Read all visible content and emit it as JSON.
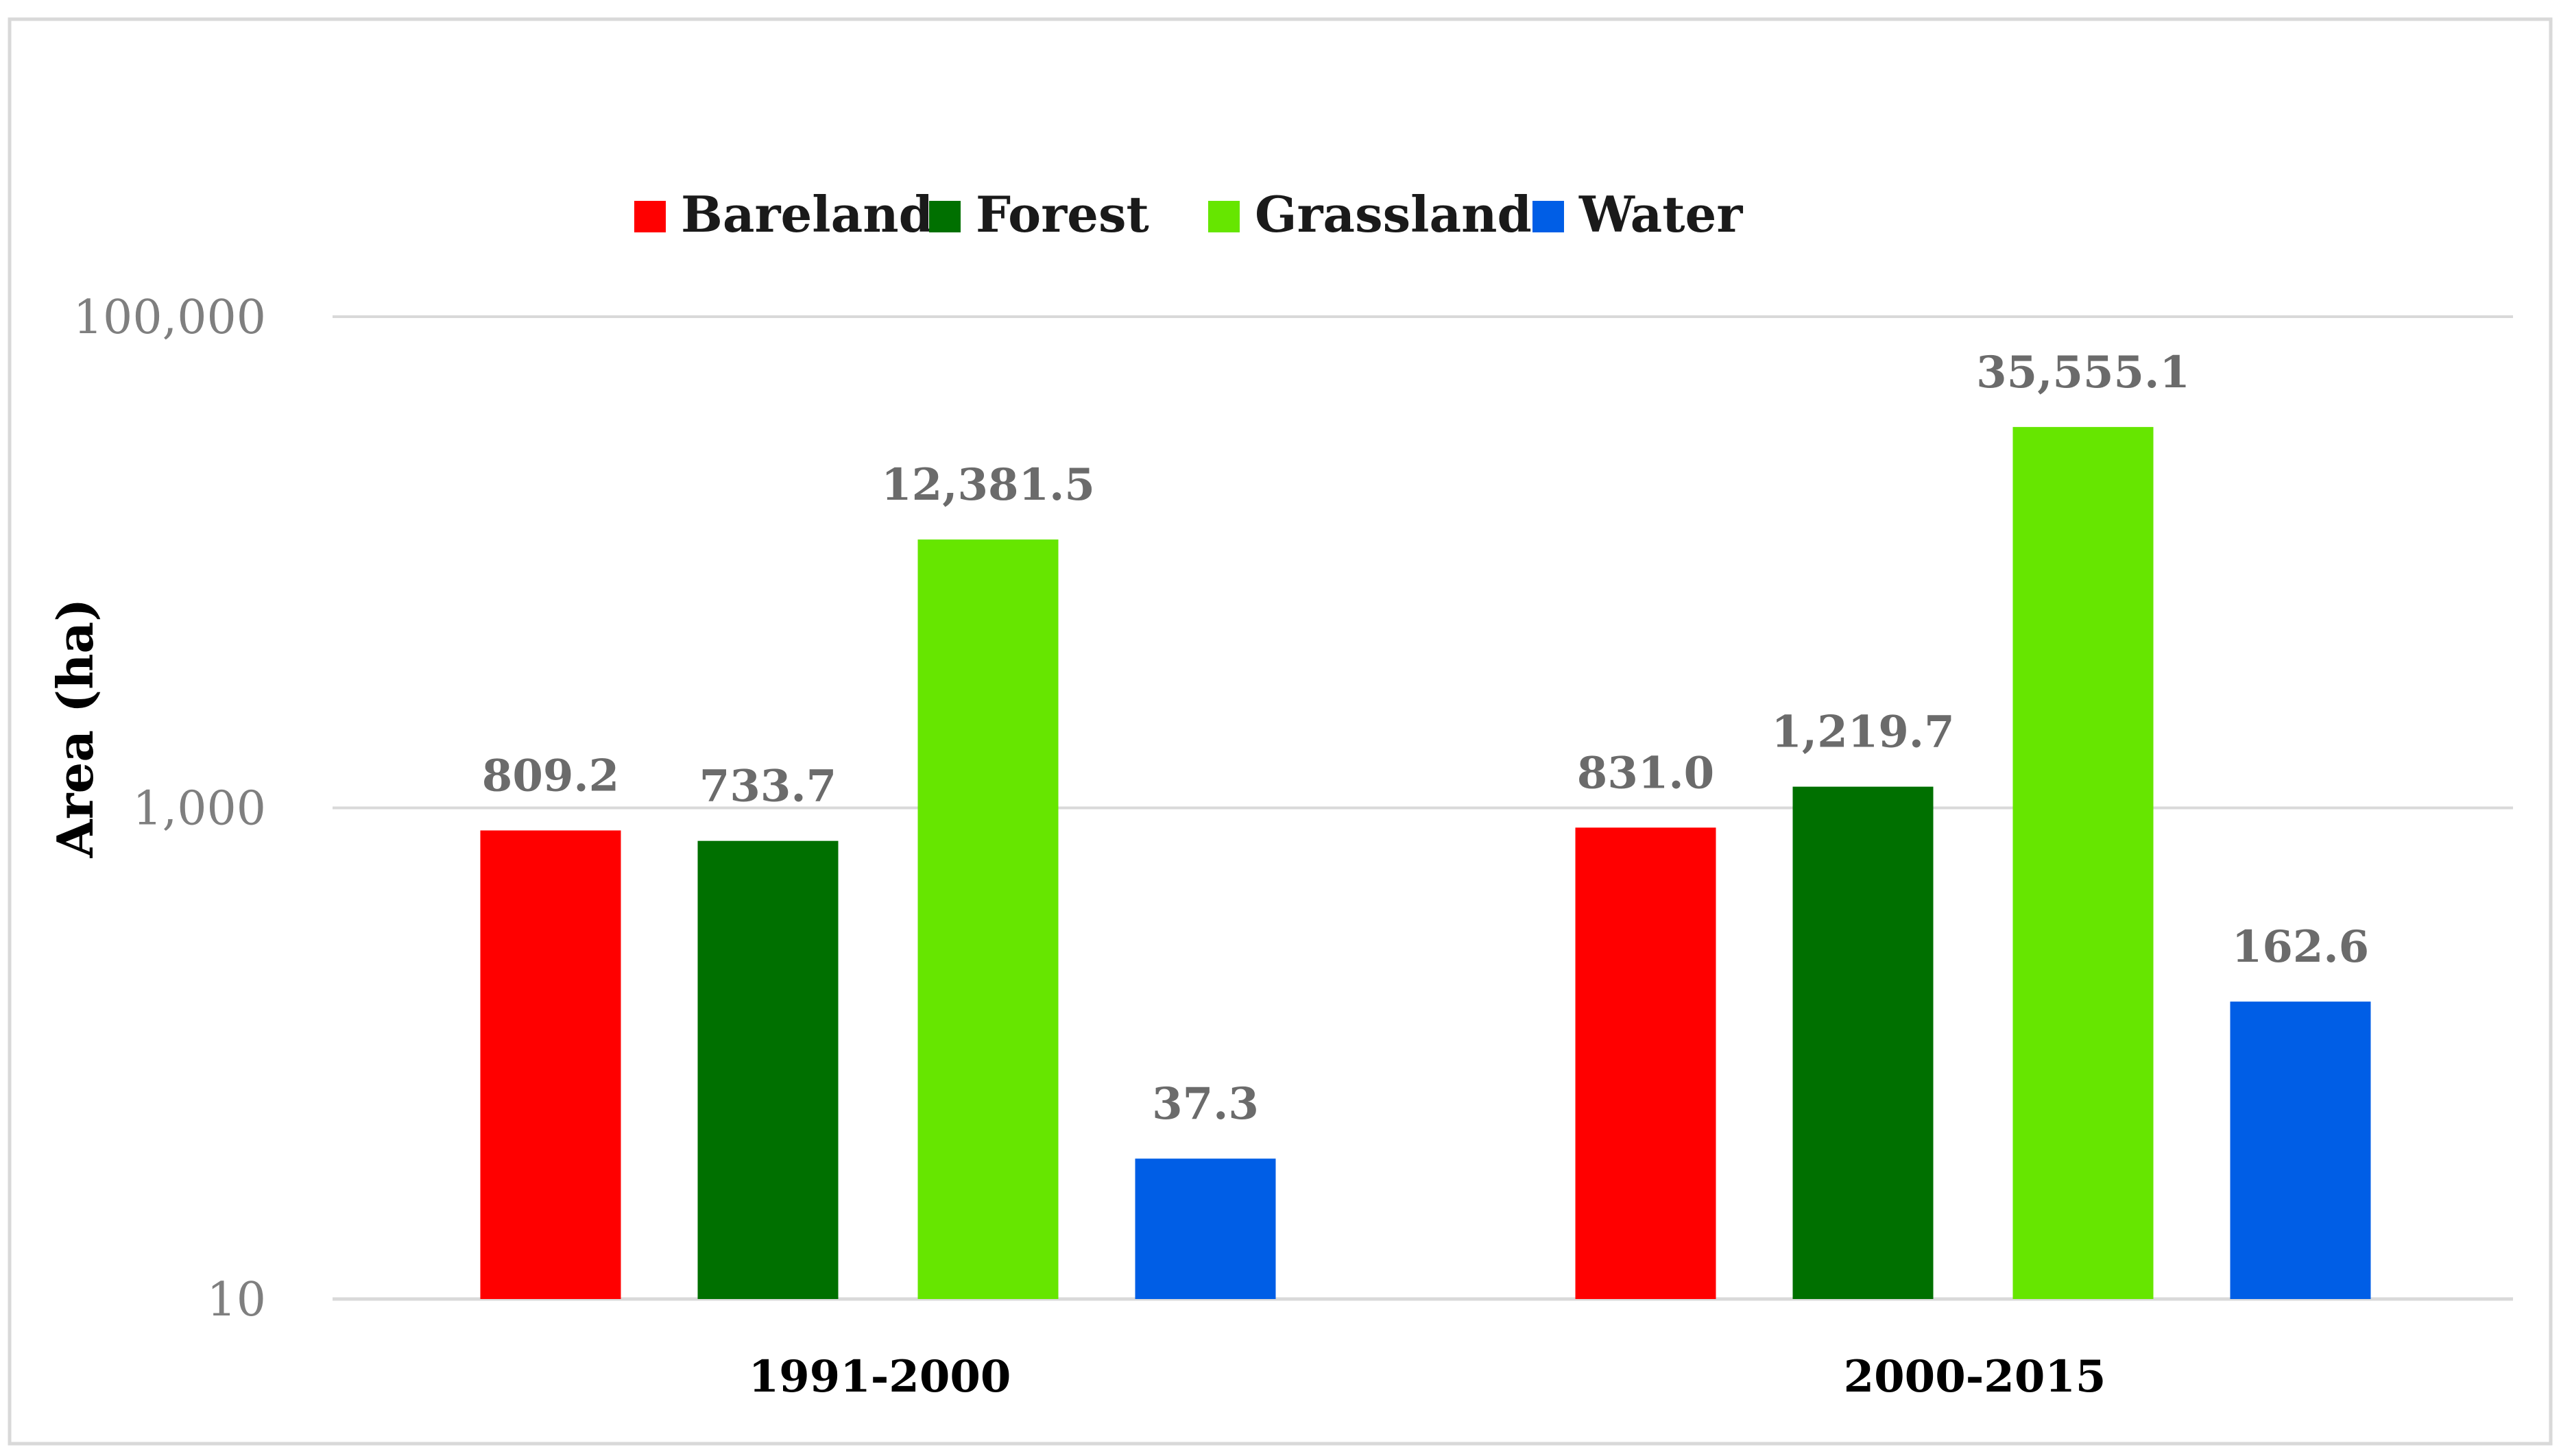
{
  "chart_data": {
    "type": "bar",
    "title": "",
    "xlabel": "",
    "ylabel": "Area (ha)",
    "yscale": "log",
    "ylim": [
      10,
      100000
    ],
    "yticks": [
      10,
      1000,
      100000
    ],
    "ytick_labels": [
      "10",
      "1,000",
      "100,000"
    ],
    "grid": true,
    "legend_position": "top-left",
    "categories": [
      "1991-2000",
      "2000-2015"
    ],
    "series": [
      {
        "name": "Bareland",
        "color": "#ff0000",
        "values": [
          809.2,
          831.0
        ],
        "labels": [
          "809.2",
          "831.0"
        ]
      },
      {
        "name": "Forest",
        "color": "#007000",
        "values": [
          733.7,
          1219.7
        ],
        "labels": [
          "733.7",
          "1,219.7"
        ]
      },
      {
        "name": "Grassland",
        "color": "#66e600",
        "values": [
          12381.5,
          35555.1
        ],
        "labels": [
          "12,381.5",
          "35,555.1"
        ]
      },
      {
        "name": "Water",
        "color": "#005ee6",
        "values": [
          37.3,
          162.6
        ],
        "labels": [
          "37.3",
          "162.6"
        ]
      }
    ]
  }
}
